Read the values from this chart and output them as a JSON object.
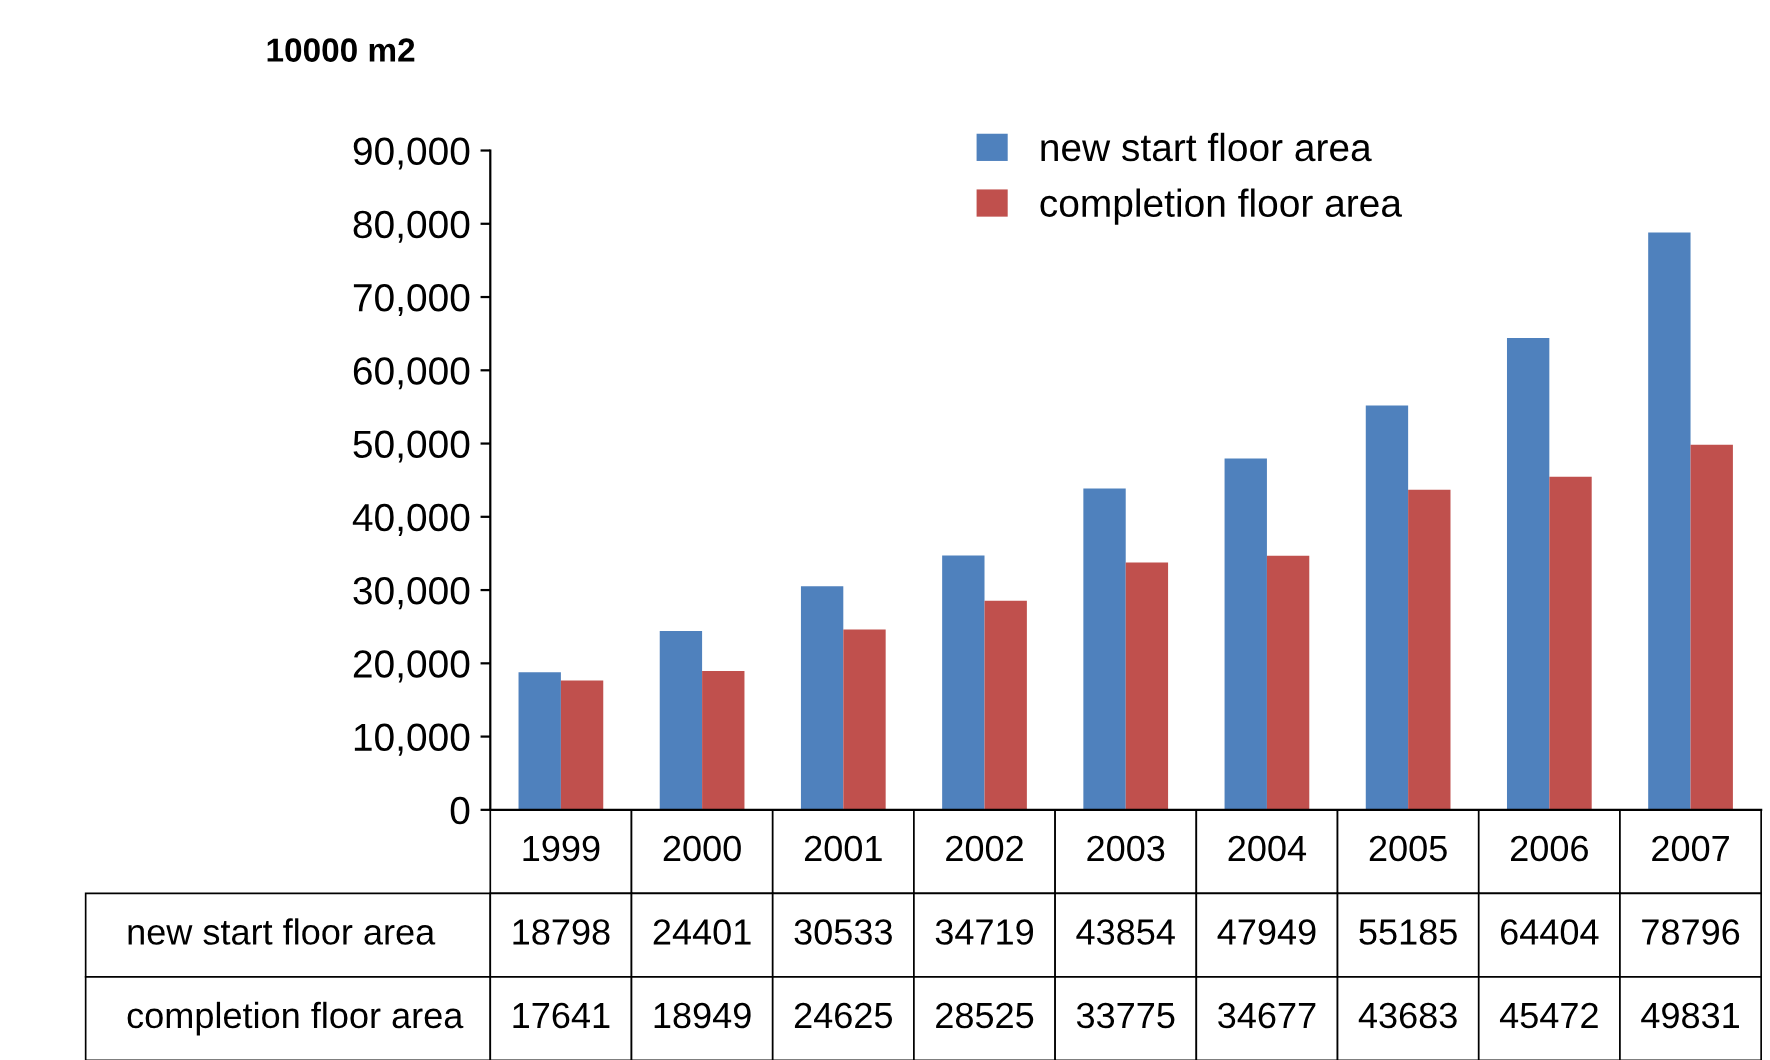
{
  "chart_data": {
    "type": "bar",
    "ylabel": "10000 m2",
    "categories": [
      "1999",
      "2000",
      "2001",
      "2002",
      "2003",
      "2004",
      "2005",
      "2006",
      "2007"
    ],
    "series": [
      {
        "name": "new start floor area",
        "color": "#4f81bd",
        "values": [
          18798,
          24401,
          30533,
          34719,
          43854,
          47949,
          55185,
          64404,
          78796
        ]
      },
      {
        "name": "completion floor area",
        "color": "#c0504d",
        "values": [
          17641,
          18949,
          24625,
          28525,
          33775,
          34677,
          43683,
          45472,
          49831
        ]
      }
    ],
    "ylim": [
      0,
      90000
    ],
    "yticks": [
      {
        "value": 0,
        "label": "0"
      },
      {
        "value": 10000,
        "label": "10,000"
      },
      {
        "value": 20000,
        "label": "20,000"
      },
      {
        "value": 30000,
        "label": "30,000"
      },
      {
        "value": 40000,
        "label": "40,000"
      },
      {
        "value": 50000,
        "label": "50,000"
      },
      {
        "value": 60000,
        "label": "60,000"
      },
      {
        "value": 70000,
        "label": "70,000"
      },
      {
        "value": 80000,
        "label": "80,000"
      },
      {
        "value": 90000,
        "label": "90,000"
      }
    ],
    "grid": false,
    "legend": "top",
    "data_labels": true
  }
}
